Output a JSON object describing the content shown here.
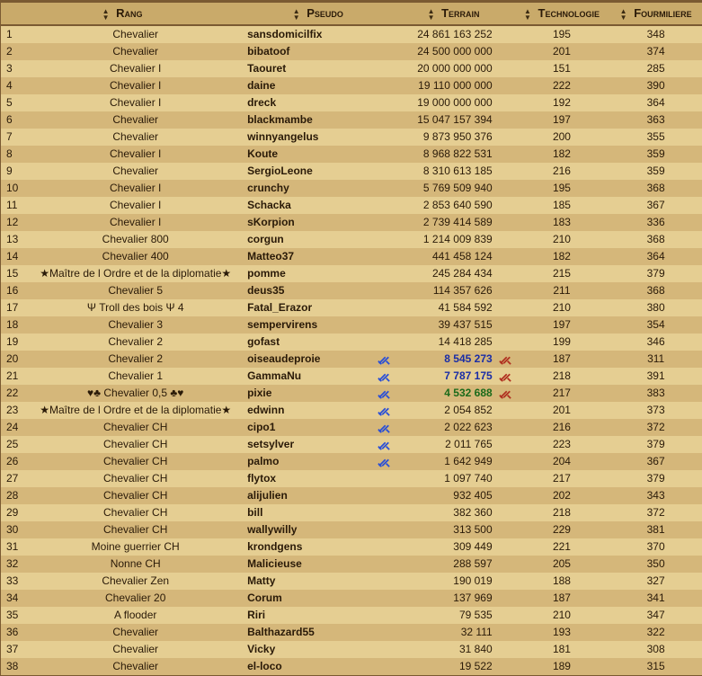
{
  "headers": {
    "rang": "Rang",
    "pseudo": "Pseudo",
    "terrain": "Terrain",
    "technologie": "Technologie",
    "fourmiliere": "Fourmiliere"
  },
  "rows": [
    {
      "n": "1",
      "rang": "Chevalier",
      "pseudo": "sansdomicilfix",
      "sb": "",
      "terrain": "24 861 163 252",
      "tc": "",
      "sr": "",
      "tech": "195",
      "four": "348"
    },
    {
      "n": "2",
      "rang": "Chevalier",
      "pseudo": "bibatoof",
      "sb": "",
      "terrain": "24 500 000 000",
      "tc": "",
      "sr": "",
      "tech": "201",
      "four": "374"
    },
    {
      "n": "3",
      "rang": "Chevalier I",
      "pseudo": "Taouret",
      "sb": "",
      "terrain": "20 000 000 000",
      "tc": "",
      "sr": "",
      "tech": "151",
      "four": "285"
    },
    {
      "n": "4",
      "rang": "Chevalier I",
      "pseudo": "daine",
      "sb": "",
      "terrain": "19 110 000 000",
      "tc": "",
      "sr": "",
      "tech": "222",
      "four": "390"
    },
    {
      "n": "5",
      "rang": "Chevalier I",
      "pseudo": "dreck",
      "sb": "",
      "terrain": "19 000 000 000",
      "tc": "",
      "sr": "",
      "tech": "192",
      "four": "364"
    },
    {
      "n": "6",
      "rang": "Chevalier",
      "pseudo": "blackmambe",
      "sb": "",
      "terrain": "15 047 157 394",
      "tc": "",
      "sr": "",
      "tech": "197",
      "four": "363"
    },
    {
      "n": "7",
      "rang": "Chevalier",
      "pseudo": "winnyangelus",
      "sb": "",
      "terrain": "9 873 950 376",
      "tc": "",
      "sr": "",
      "tech": "200",
      "four": "355"
    },
    {
      "n": "8",
      "rang": "Chevalier I",
      "pseudo": "Koute",
      "sb": "",
      "terrain": "8 968 822 531",
      "tc": "",
      "sr": "",
      "tech": "182",
      "four": "359"
    },
    {
      "n": "9",
      "rang": "Chevalier",
      "pseudo": "SergioLeone",
      "sb": "",
      "terrain": "8 310 613 185",
      "tc": "",
      "sr": "",
      "tech": "216",
      "four": "359"
    },
    {
      "n": "10",
      "rang": "Chevalier I",
      "pseudo": "crunchy",
      "sb": "",
      "terrain": "5 769 509 940",
      "tc": "",
      "sr": "",
      "tech": "195",
      "four": "368"
    },
    {
      "n": "11",
      "rang": "Chevalier I",
      "pseudo": "Schacka",
      "sb": "",
      "terrain": "2 853 640 590",
      "tc": "",
      "sr": "",
      "tech": "185",
      "four": "367"
    },
    {
      "n": "12",
      "rang": "Chevalier I",
      "pseudo": "sKorpion",
      "sb": "",
      "terrain": "2 739 414 589",
      "tc": "",
      "sr": "",
      "tech": "183",
      "four": "336"
    },
    {
      "n": "13",
      "rang": "Chevalier 800",
      "pseudo": "corgun",
      "sb": "",
      "terrain": "1 214 009 839",
      "tc": "",
      "sr": "",
      "tech": "210",
      "four": "368"
    },
    {
      "n": "14",
      "rang": "Chevalier 400",
      "pseudo": "Matteo37",
      "sb": "",
      "terrain": "441 458 124",
      "tc": "",
      "sr": "",
      "tech": "182",
      "four": "364"
    },
    {
      "n": "15",
      "rang": "★Maître de l Ordre et de la diplomatie★",
      "pseudo": "pomme",
      "sb": "",
      "terrain": "245 284 434",
      "tc": "",
      "sr": "",
      "tech": "215",
      "four": "379"
    },
    {
      "n": "16",
      "rang": "Chevalier 5",
      "pseudo": "deus35",
      "sb": "",
      "terrain": "114 357 626",
      "tc": "",
      "sr": "",
      "tech": "211",
      "four": "368"
    },
    {
      "n": "17",
      "rang": "Ψ Troll des bois Ψ 4",
      "pseudo": "Fatal_Erazor",
      "sb": "",
      "terrain": "41 584 592",
      "tc": "",
      "sr": "",
      "tech": "210",
      "four": "380"
    },
    {
      "n": "18",
      "rang": "Chevalier 3",
      "pseudo": "sempervirens",
      "sb": "",
      "terrain": "39 437 515",
      "tc": "",
      "sr": "",
      "tech": "197",
      "four": "354"
    },
    {
      "n": "19",
      "rang": "Chevalier 2",
      "pseudo": "gofast",
      "sb": "",
      "terrain": "14 418 285",
      "tc": "",
      "sr": "",
      "tech": "199",
      "four": "346"
    },
    {
      "n": "20",
      "rang": "Chevalier 2",
      "pseudo": "oiseaudeproie",
      "sb": "1",
      "terrain": "8 545 273",
      "tc": "blue",
      "sr": "1",
      "tech": "187",
      "four": "311"
    },
    {
      "n": "21",
      "rang": "Chevalier 1",
      "pseudo": "GammaNu",
      "sb": "1",
      "terrain": "7 787 175",
      "tc": "blue",
      "sr": "1",
      "tech": "218",
      "four": "391"
    },
    {
      "n": "22",
      "rang": "♥♣ Chevalier 0,5 ♣♥",
      "pseudo": "pixie",
      "sb": "1",
      "terrain": "4 532 688",
      "tc": "green",
      "sr": "1",
      "tech": "217",
      "four": "383"
    },
    {
      "n": "23",
      "rang": "★Maître de l Ordre et de la diplomatie★",
      "pseudo": "edwinn",
      "sb": "1",
      "terrain": "2 054 852",
      "tc": "",
      "sr": "",
      "tech": "201",
      "four": "373"
    },
    {
      "n": "24",
      "rang": "Chevalier CH",
      "pseudo": "cipo1",
      "sb": "1",
      "terrain": "2 022 623",
      "tc": "",
      "sr": "",
      "tech": "216",
      "four": "372"
    },
    {
      "n": "25",
      "rang": "Chevalier CH",
      "pseudo": "setsylver",
      "sb": "1",
      "terrain": "2 011 765",
      "tc": "",
      "sr": "",
      "tech": "223",
      "four": "379"
    },
    {
      "n": "26",
      "rang": "Chevalier CH",
      "pseudo": "palmo",
      "sb": "1",
      "terrain": "1 642 949",
      "tc": "",
      "sr": "",
      "tech": "204",
      "four": "367"
    },
    {
      "n": "27",
      "rang": "Chevalier CH",
      "pseudo": "flytox",
      "sb": "",
      "terrain": "1 097 740",
      "tc": "",
      "sr": "",
      "tech": "217",
      "four": "379"
    },
    {
      "n": "28",
      "rang": "Chevalier CH",
      "pseudo": "alijulien",
      "sb": "",
      "terrain": "932 405",
      "tc": "",
      "sr": "",
      "tech": "202",
      "four": "343"
    },
    {
      "n": "29",
      "rang": "Chevalier CH",
      "pseudo": "bill",
      "sb": "",
      "terrain": "382 360",
      "tc": "",
      "sr": "",
      "tech": "218",
      "four": "372"
    },
    {
      "n": "30",
      "rang": "Chevalier CH",
      "pseudo": "wallywilly",
      "sb": "",
      "terrain": "313 500",
      "tc": "",
      "sr": "",
      "tech": "229",
      "four": "381"
    },
    {
      "n": "31",
      "rang": "Moine guerrier CH",
      "pseudo": "krondgens",
      "sb": "",
      "terrain": "309 449",
      "tc": "",
      "sr": "",
      "tech": "221",
      "four": "370"
    },
    {
      "n": "32",
      "rang": "Nonne CH",
      "pseudo": "Malicieuse",
      "sb": "",
      "terrain": "288 597",
      "tc": "",
      "sr": "",
      "tech": "205",
      "four": "350"
    },
    {
      "n": "33",
      "rang": "Chevalier Zen",
      "pseudo": "Matty",
      "sb": "",
      "terrain": "190 019",
      "tc": "",
      "sr": "",
      "tech": "188",
      "four": "327"
    },
    {
      "n": "34",
      "rang": "Chevalier 20",
      "pseudo": "Corum",
      "sb": "",
      "terrain": "137 969",
      "tc": "",
      "sr": "",
      "tech": "187",
      "four": "341"
    },
    {
      "n": "35",
      "rang": "A flooder",
      "pseudo": "Riri",
      "sb": "",
      "terrain": "79 535",
      "tc": "",
      "sr": "",
      "tech": "210",
      "four": "347"
    },
    {
      "n": "36",
      "rang": "Chevalier",
      "pseudo": "Balthazard55",
      "sb": "",
      "terrain": "32 111",
      "tc": "",
      "sr": "",
      "tech": "193",
      "four": "322"
    },
    {
      "n": "37",
      "rang": "Chevalier",
      "pseudo": "Vicky",
      "sb": "",
      "terrain": "31 840",
      "tc": "",
      "sr": "",
      "tech": "181",
      "four": "308"
    },
    {
      "n": "38",
      "rang": "Chevalier",
      "pseudo": "el-loco",
      "sb": "",
      "terrain": "19 522",
      "tc": "",
      "sr": "",
      "tech": "189",
      "four": "315"
    }
  ]
}
